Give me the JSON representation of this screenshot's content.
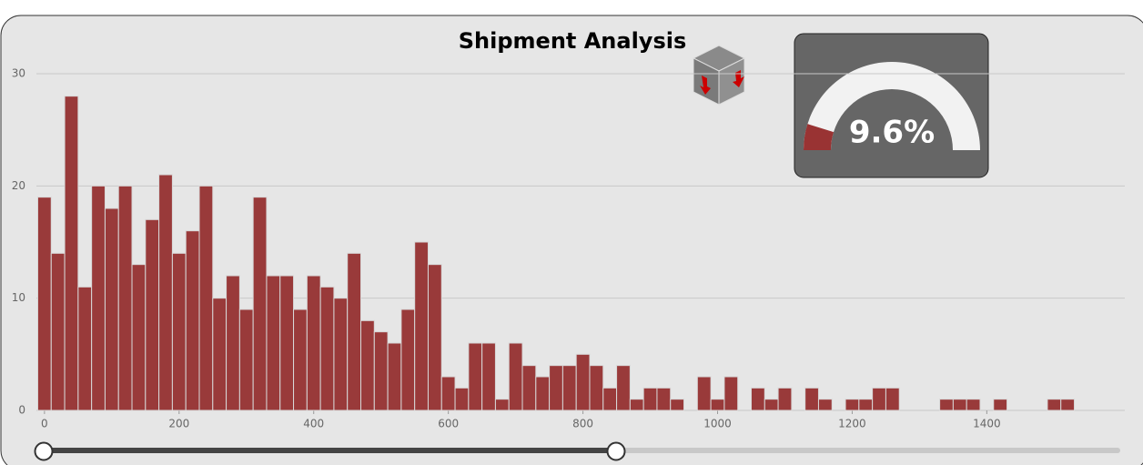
{
  "chart_data": [
    {
      "type": "histogram",
      "title": "Shipment Analysis",
      "bins": [
        -10,
        10,
        30,
        50,
        70,
        90,
        110,
        130,
        150,
        170,
        190,
        210,
        230,
        250,
        270,
        290,
        310,
        330,
        350,
        370,
        390,
        410,
        430,
        450,
        470,
        490,
        510,
        530,
        550,
        570,
        590,
        610,
        630,
        650,
        670,
        690,
        710,
        730,
        750,
        770,
        790,
        810,
        830,
        850,
        870,
        890,
        910,
        930,
        950,
        970,
        990,
        1010,
        1030,
        1050,
        1070,
        1090,
        1110,
        1130,
        1150,
        1170,
        1190,
        1210,
        1230,
        1250,
        1270,
        1290,
        1310,
        1330,
        1350,
        1370,
        1390,
        1410,
        1430,
        1450,
        1470,
        1490,
        1510,
        1530
      ],
      "counts": [
        19,
        14,
        28,
        11,
        20,
        18,
        20,
        13,
        17,
        21,
        14,
        16,
        20,
        10,
        12,
        9,
        19,
        12,
        12,
        9,
        12,
        11,
        10,
        14,
        8,
        7,
        6,
        9,
        15,
        13,
        3,
        2,
        6,
        6,
        1,
        6,
        4,
        3,
        4,
        4,
        5,
        4,
        2,
        4,
        1,
        2,
        2,
        1,
        0,
        3,
        1,
        3,
        0,
        2,
        1,
        2,
        0,
        2,
        1,
        0,
        1,
        1,
        2,
        2,
        0,
        0,
        0,
        1,
        1,
        1,
        0,
        1,
        0,
        0,
        0,
        1,
        1
      ],
      "color": "#993a3a",
      "xlim": [
        -12,
        1605
      ],
      "xticks": [
        0,
        200,
        400,
        600,
        800,
        1000,
        1200,
        1400
      ],
      "ylim": [
        0,
        30
      ],
      "yticks": [
        0,
        10,
        20,
        30
      ],
      "grid": true
    },
    {
      "type": "gauge",
      "value": 9.6,
      "value_label": "9.6%",
      "range": [
        0,
        100
      ],
      "color": "#993333"
    }
  ]
}
